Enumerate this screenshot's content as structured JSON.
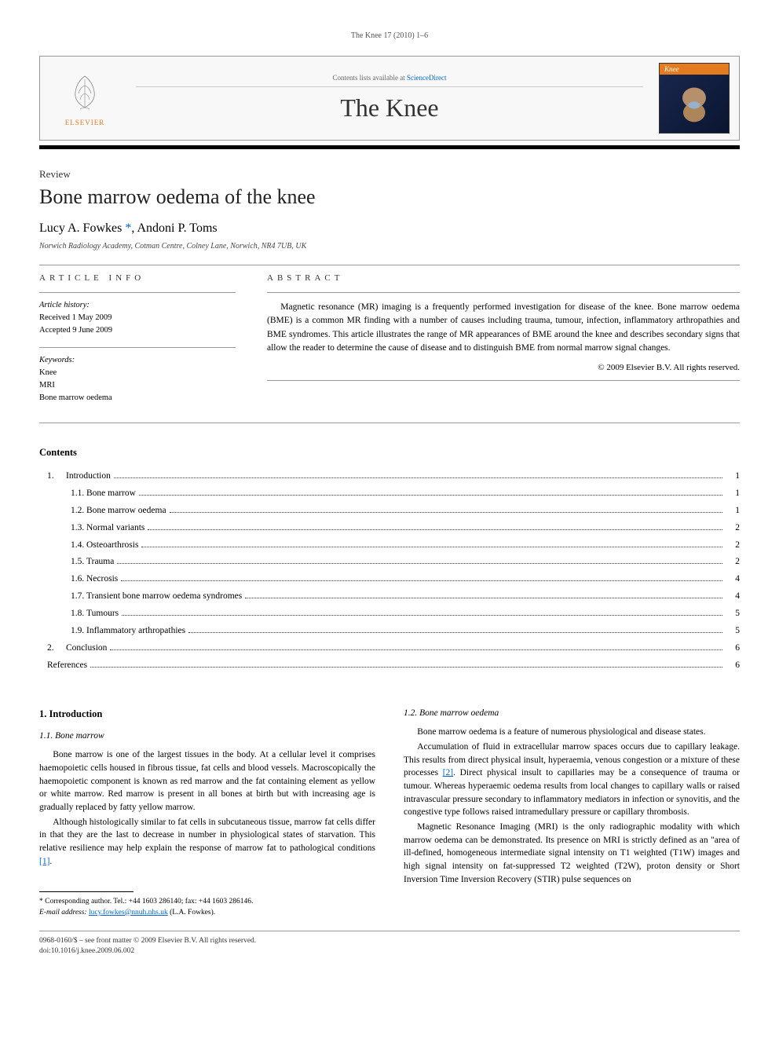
{
  "running_header": "The Knee 17 (2010) 1–6",
  "masthead": {
    "contents_text": "Contents lists available at ",
    "contents_link": "ScienceDirect",
    "journal_title": "The Knee",
    "publisher_label": "ELSEVIER",
    "cover_label": "Knee"
  },
  "article": {
    "type": "Review",
    "title": "Bone marrow oedema of the knee",
    "authors_html": "Lucy A. Fowkes *, Andoni P. Toms",
    "author1": "Lucy A. Fowkes ",
    "corr_mark": "*",
    "sep": ", ",
    "author2": "Andoni P. Toms",
    "affiliation": "Norwich Radiology Academy, Cotman Centre, Colney Lane, Norwich, NR4 7UB, UK"
  },
  "info": {
    "label": "ARTICLE INFO",
    "history_heading": "Article history:",
    "received": "Received 1 May 2009",
    "accepted": "Accepted 9 June 2009",
    "keywords_heading": "Keywords:",
    "keywords": [
      "Knee",
      "MRI",
      "Bone marrow oedema"
    ]
  },
  "abstract": {
    "label": "ABSTRACT",
    "text": "Magnetic resonance (MR) imaging is a frequently performed investigation for disease of the knee. Bone marrow oedema (BME) is a common MR finding with a number of causes including trauma, tumour, infection, inflammatory arthropathies and BME syndromes. This article illustrates the range of MR appearances of BME around the knee and describes secondary signs that allow the reader to determine the cause of disease and to distinguish BME from normal marrow signal changes.",
    "copyright": "© 2009 Elsevier B.V. All rights reserved."
  },
  "contents": {
    "heading": "Contents",
    "items": [
      {
        "level": 0,
        "num": "1.",
        "title": "Introduction",
        "page": "1"
      },
      {
        "level": 1,
        "num": "1.1.",
        "title": "Bone marrow",
        "page": "1"
      },
      {
        "level": 1,
        "num": "1.2.",
        "title": "Bone marrow oedema",
        "page": "1"
      },
      {
        "level": 1,
        "num": "1.3.",
        "title": "Normal variants",
        "page": "2"
      },
      {
        "level": 1,
        "num": "1.4.",
        "title": "Osteoarthrosis",
        "page": "2"
      },
      {
        "level": 1,
        "num": "1.5.",
        "title": "Trauma",
        "page": "2"
      },
      {
        "level": 1,
        "num": "1.6.",
        "title": "Necrosis",
        "page": "4"
      },
      {
        "level": 1,
        "num": "1.7.",
        "title": "Transient bone marrow oedema syndromes",
        "page": "4"
      },
      {
        "level": 1,
        "num": "1.8.",
        "title": "Tumours",
        "page": "5"
      },
      {
        "level": 1,
        "num": "1.9.",
        "title": "Inflammatory arthropathies",
        "page": "5"
      },
      {
        "level": 0,
        "num": "2.",
        "title": "Conclusion",
        "page": "6"
      },
      {
        "level": 0,
        "num": "",
        "title": "References",
        "page": "6",
        "noref": true
      }
    ]
  },
  "body": {
    "left": {
      "h1": "1. Introduction",
      "h2": "1.1. Bone marrow",
      "p1": "Bone marrow is one of the largest tissues in the body. At a cellular level it comprises haemopoietic cells housed in fibrous tissue, fat cells and blood vessels. Macroscopically the haemopoietic component is known as red marrow and the fat containing element as yellow or white marrow. Red marrow is present in all bones at birth but with increasing age is gradually replaced by fatty yellow marrow.",
      "p2_a": "Although histologically similar to fat cells in subcutaneous tissue, marrow fat cells differ in that they are the last to decrease in number in physiological states of starvation. This relative resilience may help explain the response of marrow fat to pathological conditions ",
      "p2_ref": "[1]",
      "p2_b": "."
    },
    "right": {
      "h2": "1.2. Bone marrow oedema",
      "p1": "Bone marrow oedema is a feature of numerous physiological and disease states.",
      "p2_a": "Accumulation of fluid in extracellular marrow spaces occurs due to capillary leakage. This results from direct physical insult, hyperaemia, venous congestion or a mixture of these processes ",
      "p2_ref": "[2]",
      "p2_b": ". Direct physical insult to capillaries may be a consequence of trauma or tumour. Whereas hyperaemic oedema results from local changes to capillary walls or raised intravascular pressure secondary to inflammatory mediators in infection or synovitis, and the congestive type follows raised intramedullary pressure or capillary thrombosis.",
      "p3": "Magnetic Resonance Imaging (MRI) is the only radiographic modality with which marrow oedema can be demonstrated. Its presence on MRI is strictly defined as an \"area of ill-defined, homogeneous intermediate signal intensity on T1 weighted (T1W) images and high signal intensity on fat-suppressed T2 weighted (T2W), proton density or Short Inversion Time Inversion Recovery (STIR) pulse sequences on"
    }
  },
  "footnote": {
    "corr_label": "* Corresponding author. Tel.: +44 1603 286140; fax: +44 1603 286146.",
    "email_label": "E-mail address: ",
    "email": "lucy.fowkes@nnuh.nhs.uk",
    "email_suffix": " (L.A. Fowkes)."
  },
  "bottom": {
    "line1": "0968-0160/$ – see front matter © 2009 Elsevier B.V. All rights reserved.",
    "line2": "doi:10.1016/j.knee.2009.06.002"
  },
  "colors": {
    "accent_orange": "#e67a1f",
    "link_blue": "#0066cc",
    "cover_bg": "#1a2850"
  }
}
